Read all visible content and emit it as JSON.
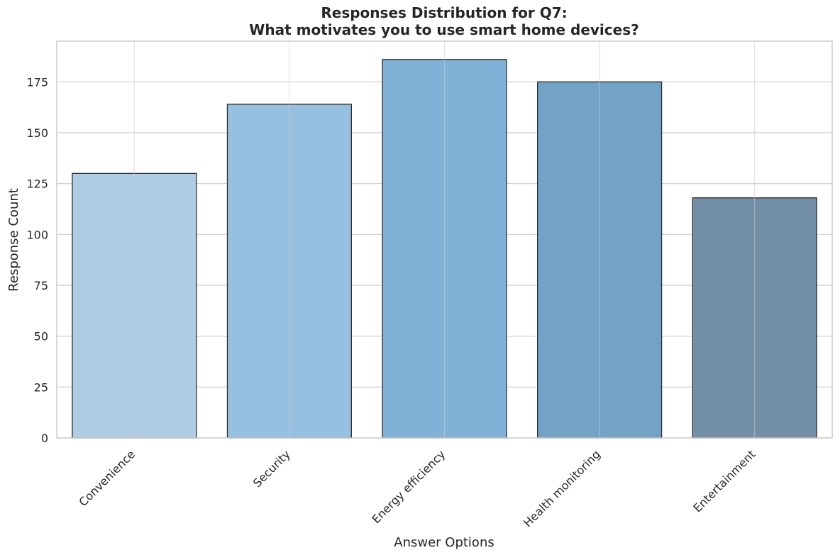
{
  "chart_data": {
    "type": "bar",
    "title_lines": [
      "Responses Distribution for Q7:",
      "What motivates you to use smart home devices?"
    ],
    "xlabel": "Answer Options",
    "ylabel": "Response Count",
    "categories": [
      "Convenience",
      "Security",
      "Energy efficiency",
      "Health monitoring",
      "Entertainment"
    ],
    "values": [
      130,
      164,
      186,
      175,
      118
    ],
    "colors": [
      "#aecde4",
      "#97bfdf",
      "#80b2d7",
      "#72a3c7",
      "#728fa6"
    ],
    "ylim": [
      0,
      195
    ],
    "yticks": [
      0,
      25,
      50,
      75,
      100,
      125,
      150,
      175
    ],
    "grid": true
  }
}
